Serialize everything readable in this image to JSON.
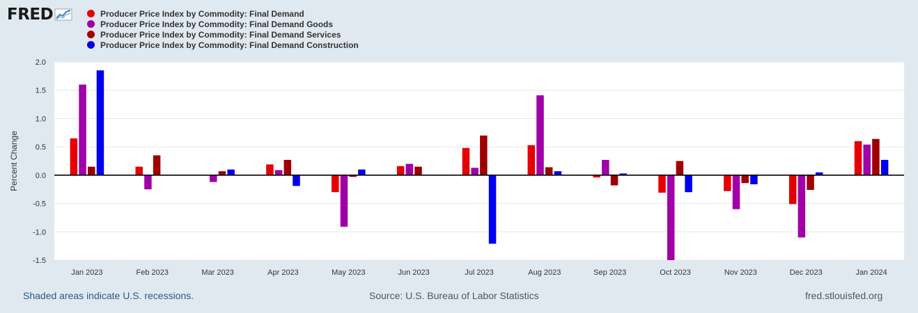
{
  "logo": {
    "text": "FRED"
  },
  "chart_data": {
    "type": "bar",
    "title": "",
    "xlabel": "",
    "ylabel": "Percent Change",
    "ylim": [
      -1.5,
      2.0
    ],
    "yticks": [
      "2.0",
      "1.5",
      "1.0",
      "0.5",
      "0.0",
      "-0.5",
      "-1.0",
      "-1.5"
    ],
    "ytick_values": [
      2.0,
      1.5,
      1.0,
      0.5,
      0.0,
      -0.5,
      -1.0,
      -1.5
    ],
    "grid": true,
    "legend_position": "top-left",
    "categories": [
      "Jan 2023",
      "Feb 2023",
      "Mar 2023",
      "Apr 2023",
      "May 2023",
      "Jun 2023",
      "Jul 2023",
      "Aug 2023",
      "Sep 2023",
      "Oct 2023",
      "Nov 2023",
      "Dec 2023",
      "Jan 2024"
    ],
    "series": [
      {
        "name": "Producer Price Index by Commodity: Final Demand",
        "color": "#e60000",
        "values": [
          0.65,
          0.15,
          0.0,
          0.19,
          -0.3,
          0.16,
          0.48,
          0.53,
          -0.04,
          -0.31,
          -0.28,
          -0.51,
          0.6
        ]
      },
      {
        "name": "Producer Price Index by Commodity: Final Demand Goods",
        "color": "#a100a8",
        "values": [
          1.6,
          -0.25,
          -0.12,
          0.09,
          -0.91,
          0.2,
          0.13,
          1.41,
          0.27,
          -1.5,
          -0.6,
          -1.1,
          0.54
        ]
      },
      {
        "name": "Producer Price Index by Commodity: Final Demand Services",
        "color": "#9e0000",
        "values": [
          0.15,
          0.35,
          0.07,
          0.27,
          -0.03,
          0.15,
          0.7,
          0.14,
          -0.18,
          0.25,
          -0.14,
          -0.26,
          0.64
        ]
      },
      {
        "name": "Producer Price Index by Commodity: Final Demand Construction",
        "color": "#0000ee",
        "values": [
          1.85,
          0.0,
          0.1,
          -0.19,
          0.1,
          0.0,
          -1.21,
          0.07,
          0.03,
          -0.3,
          -0.16,
          0.05,
          0.27
        ]
      }
    ]
  },
  "footer": {
    "recessions": "Shaded areas indicate U.S. recessions.",
    "source": "Source: U.S. Bureau of Labor Statistics",
    "site": "fred.stlouisfed.org"
  }
}
